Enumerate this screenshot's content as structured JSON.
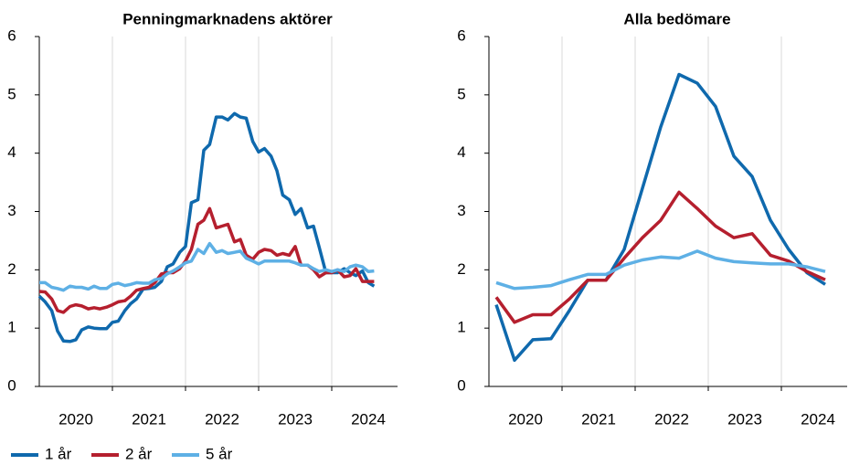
{
  "chart_data": [
    {
      "type": "line",
      "title": "Penningmarknadens aktörer",
      "x": [
        2020,
        2020.08,
        2020.17,
        2020.25,
        2020.33,
        2020.42,
        2020.5,
        2020.58,
        2020.67,
        2020.75,
        2020.83,
        2020.92,
        2021,
        2021.08,
        2021.17,
        2021.25,
        2021.33,
        2021.42,
        2021.5,
        2021.58,
        2021.67,
        2021.75,
        2021.83,
        2021.92,
        2022,
        2022.08,
        2022.17,
        2022.25,
        2022.33,
        2022.42,
        2022.5,
        2022.58,
        2022.67,
        2022.75,
        2022.83,
        2022.92,
        2023,
        2023.08,
        2023.17,
        2023.25,
        2023.33,
        2023.42,
        2023.5,
        2023.58,
        2023.67,
        2023.75,
        2023.83,
        2023.92,
        2024,
        2024.08,
        2024.17,
        2024.25,
        2024.33,
        2024.42,
        2024.5,
        2024.58
      ],
      "series": [
        {
          "name": "1 år",
          "color": "#0f69ad",
          "values": [
            1.55,
            1.45,
            1.3,
            0.95,
            0.78,
            0.77,
            0.8,
            0.97,
            1.02,
            1.0,
            0.99,
            0.99,
            1.1,
            1.12,
            1.3,
            1.42,
            1.5,
            1.67,
            1.68,
            1.7,
            1.8,
            2.05,
            2.1,
            2.3,
            2.4,
            3.15,
            3.2,
            4.05,
            4.15,
            4.62,
            4.62,
            4.57,
            4.68,
            4.62,
            4.6,
            4.2,
            4.02,
            4.08,
            3.95,
            3.7,
            3.28,
            3.2,
            2.95,
            3.05,
            2.72,
            2.75,
            2.38,
            1.95,
            1.95,
            1.95,
            2.02,
            1.95,
            1.9,
            1.98,
            1.78,
            1.72
          ]
        },
        {
          "name": "2 år",
          "color": "#b51f2e",
          "values": [
            1.63,
            1.62,
            1.5,
            1.3,
            1.27,
            1.37,
            1.4,
            1.38,
            1.33,
            1.35,
            1.33,
            1.36,
            1.4,
            1.45,
            1.47,
            1.55,
            1.65,
            1.68,
            1.7,
            1.78,
            1.93,
            1.95,
            1.95,
            2.02,
            2.15,
            2.35,
            2.78,
            2.85,
            3.05,
            2.72,
            2.75,
            2.78,
            2.48,
            2.52,
            2.25,
            2.18,
            2.3,
            2.35,
            2.33,
            2.25,
            2.28,
            2.25,
            2.4,
            2.08,
            2.08,
            2.0,
            1.88,
            1.95,
            1.95,
            2.0,
            1.88,
            1.9,
            2.02,
            1.8,
            1.8,
            1.8
          ]
        },
        {
          "name": "5 år",
          "color": "#5eb0e5",
          "values": [
            1.78,
            1.78,
            1.7,
            1.68,
            1.65,
            1.72,
            1.7,
            1.7,
            1.67,
            1.72,
            1.68,
            1.68,
            1.75,
            1.77,
            1.73,
            1.75,
            1.78,
            1.77,
            1.77,
            1.83,
            1.85,
            1.93,
            1.98,
            2.05,
            2.12,
            2.15,
            2.35,
            2.28,
            2.45,
            2.3,
            2.33,
            2.28,
            2.3,
            2.32,
            2.2,
            2.15,
            2.1,
            2.15,
            2.15,
            2.15,
            2.15,
            2.15,
            2.12,
            2.08,
            2.08,
            2.02,
            1.97,
            2.0,
            1.97,
            2.0,
            1.97,
            2.05,
            2.08,
            2.05,
            1.97,
            1.98
          ]
        }
      ],
      "xlim": [
        2020,
        2024.9
      ],
      "xticks": [
        {
          "value": 2020.5,
          "label": "2020"
        },
        {
          "value": 2021.5,
          "label": "2021"
        },
        {
          "value": 2022.5,
          "label": "2022"
        },
        {
          "value": 2023.5,
          "label": "2023"
        },
        {
          "value": 2024.5,
          "label": "2024"
        }
      ],
      "x_gridlines": [
        2021,
        2022,
        2023,
        2024
      ],
      "ylim": [
        0,
        6
      ],
      "yticks": [
        0,
        1,
        2,
        3,
        4,
        5,
        6
      ]
    },
    {
      "type": "line",
      "title": "Alla bedömare",
      "x": [
        2020.1,
        2020.35,
        2020.6,
        2020.85,
        2021.1,
        2021.35,
        2021.6,
        2021.85,
        2022.1,
        2022.35,
        2022.6,
        2022.85,
        2023.1,
        2023.35,
        2023.6,
        2023.85,
        2024.1,
        2024.35,
        2024.6
      ],
      "series": [
        {
          "name": "1 år",
          "color": "#0f69ad",
          "values": [
            1.4,
            0.45,
            0.8,
            0.82,
            1.3,
            1.82,
            1.82,
            2.35,
            3.4,
            4.45,
            5.35,
            5.2,
            4.8,
            3.95,
            3.6,
            2.85,
            2.35,
            1.95,
            1.75
          ]
        },
        {
          "name": "2 år",
          "color": "#b51f2e",
          "values": [
            1.53,
            1.1,
            1.23,
            1.23,
            1.5,
            1.82,
            1.82,
            2.2,
            2.55,
            2.85,
            3.33,
            3.05,
            2.75,
            2.55,
            2.62,
            2.25,
            2.15,
            1.97,
            1.83
          ]
        },
        {
          "name": "5 år",
          "color": "#5eb0e5",
          "values": [
            1.78,
            1.68,
            1.7,
            1.73,
            1.83,
            1.92,
            1.92,
            2.08,
            2.17,
            2.22,
            2.2,
            2.32,
            2.2,
            2.14,
            2.12,
            2.1,
            2.1,
            2.05,
            1.97
          ]
        }
      ],
      "xlim": [
        2020,
        2024.9
      ],
      "xticks": [
        {
          "value": 2020.5,
          "label": "2020"
        },
        {
          "value": 2021.5,
          "label": "2021"
        },
        {
          "value": 2022.5,
          "label": "2022"
        },
        {
          "value": 2023.5,
          "label": "2023"
        },
        {
          "value": 2024.5,
          "label": "2024"
        }
      ],
      "x_gridlines": [
        2021,
        2022,
        2023,
        2024
      ],
      "ylim": [
        0,
        6
      ],
      "yticks": [
        0,
        1,
        2,
        3,
        4,
        5,
        6
      ]
    }
  ]
}
